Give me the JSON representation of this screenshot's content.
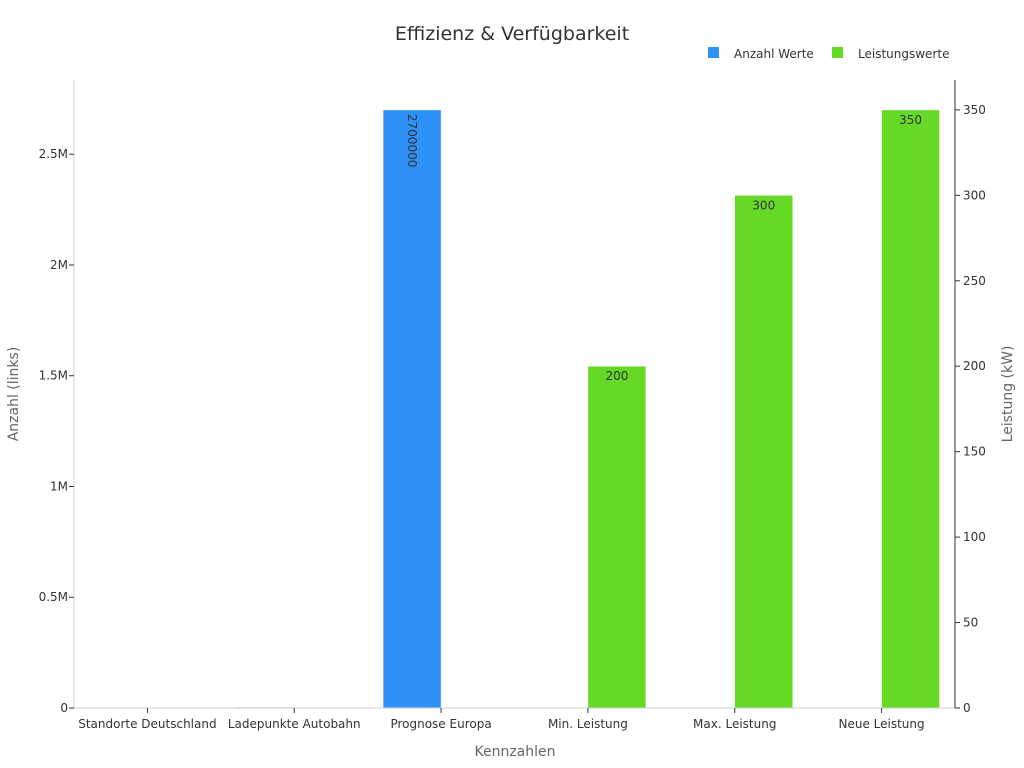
{
  "chart_data": {
    "type": "bar",
    "title": "Effizienz & Verfügbarkeit",
    "xlabel": "Kennzahlen",
    "ylabel_left": "Anzahl (links)",
    "ylabel_right": "Leistung (kW)",
    "categories": [
      "Standorte Deutschland",
      "Ladepunkte Autobahn",
      "Prognose Europa",
      "Min. Leistung",
      "Max. Leistung",
      "Neue Leistung"
    ],
    "y_left_range": [
      0,
      2835000
    ],
    "y_right_range": [
      0,
      367.5
    ],
    "y_left_ticks": [
      {
        "value": 0,
        "label": "0"
      },
      {
        "value": 500000,
        "label": "0.5M"
      },
      {
        "value": 1000000,
        "label": "1M"
      },
      {
        "value": 1500000,
        "label": "1.5M"
      },
      {
        "value": 2000000,
        "label": "2M"
      },
      {
        "value": 2500000,
        "label": "2.5M"
      }
    ],
    "y_right_ticks": [
      {
        "value": 0,
        "label": "0"
      },
      {
        "value": 50,
        "label": "50"
      },
      {
        "value": 100,
        "label": "100"
      },
      {
        "value": 150,
        "label": "150"
      },
      {
        "value": 200,
        "label": "200"
      },
      {
        "value": 250,
        "label": "250"
      },
      {
        "value": 300,
        "label": "300"
      },
      {
        "value": 350,
        "label": "350"
      }
    ],
    "legend_position": "top-right",
    "grid": false,
    "series": [
      {
        "name": "Anzahl Werte",
        "axis": "left",
        "color": "#2d91f8",
        "values": [
          2000,
          4000,
          2700000,
          null,
          null,
          null
        ],
        "labels": [
          "",
          "",
          "2700000",
          "",
          "",
          ""
        ]
      },
      {
        "name": "Leistungswerte",
        "axis": "right",
        "color": "#66d927",
        "values": [
          null,
          null,
          null,
          200,
          300,
          350
        ],
        "labels": [
          "",
          "",
          "",
          "200",
          "300",
          "350"
        ]
      }
    ]
  }
}
